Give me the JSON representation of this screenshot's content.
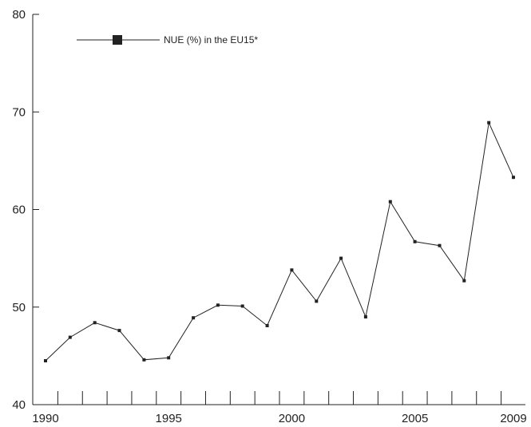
{
  "chart_data": {
    "type": "line",
    "x": [
      1990,
      1991,
      1992,
      1993,
      1994,
      1995,
      1996,
      1997,
      1998,
      1999,
      2000,
      2001,
      2002,
      2003,
      2004,
      2005,
      2006,
      2007,
      2008,
      2009
    ],
    "series": [
      {
        "name": "NUE (%) in the EU15*",
        "values": [
          44.5,
          46.9,
          48.4,
          47.6,
          44.6,
          44.8,
          48.9,
          50.2,
          50.1,
          48.1,
          53.8,
          50.6,
          55.0,
          49.0,
          60.8,
          56.7,
          56.3,
          52.7,
          68.9,
          63.3
        ]
      }
    ],
    "xlim": [
      1990,
      2009
    ],
    "ylim": [
      40,
      80
    ],
    "x_tick_labels": [
      "1990",
      "1995",
      "2000",
      "2005",
      "2009"
    ],
    "y_tick_labels": [
      "40",
      "50",
      "60",
      "70",
      "80"
    ],
    "legend": "top-left",
    "grid": false,
    "line_color": "#222222"
  }
}
